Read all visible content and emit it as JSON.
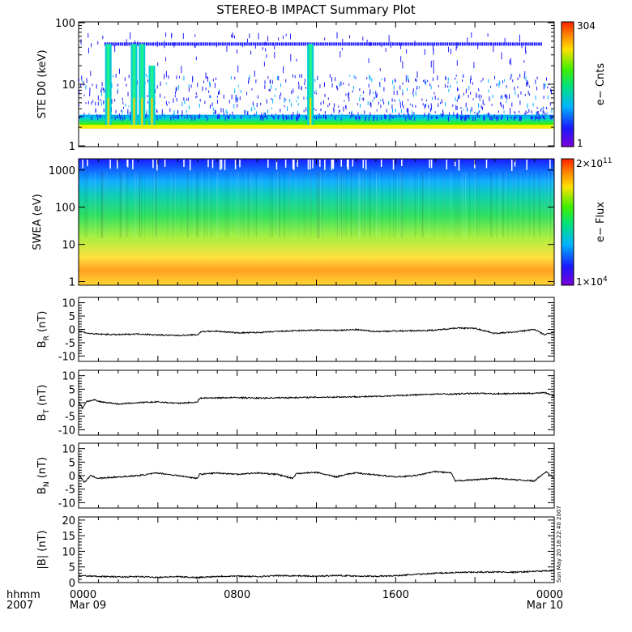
{
  "title": "STEREO-B IMPACT Summary Plot",
  "footer": {
    "hhmm": "hhmm",
    "year": "2007"
  },
  "stamp": "Sun May 20 18:22:40 2007",
  "x_axis": {
    "ticks": [
      {
        "t": 0,
        "label": "0000",
        "sub": "Mar 09"
      },
      {
        "t": 8,
        "label": "0800",
        "sub": ""
      },
      {
        "t": 16,
        "label": "1600",
        "sub": ""
      },
      {
        "t": 24,
        "label": "0000",
        "sub": "Mar 10"
      }
    ],
    "range": [
      0,
      24
    ]
  },
  "colors": {
    "scatter_blue": "#1a1aff",
    "line": "#000000"
  },
  "chart_data": [
    {
      "type": "heatmap",
      "ylabel": "STE D0 (keV)",
      "ylog": true,
      "ylim": [
        1,
        100
      ],
      "yticks": [
        "1",
        "10",
        "100"
      ],
      "colorbar": {
        "label": "e− Cnts",
        "max": "304",
        "min": "1"
      },
      "spikes": [
        {
          "t": 1.5,
          "top_keV": 45
        },
        {
          "t": 2.8,
          "top_keV": 45
        },
        {
          "t": 3.2,
          "top_keV": 45
        },
        {
          "t": 3.7,
          "top_keV": 20
        },
        {
          "t": 11.7,
          "top_keV": 45
        }
      ]
    },
    {
      "type": "heatmap",
      "ylabel": "SWEA (eV)",
      "ylog": true,
      "ylim": [
        0.8,
        2000
      ],
      "yticks": [
        "1",
        "10",
        "100",
        "1000"
      ],
      "colorbar": {
        "label": "e− Flux",
        "max": "2×10",
        "max_exp": "11",
        "min": "1×10",
        "min_exp": "4"
      }
    },
    {
      "type": "line",
      "ylabel_main": "B",
      "ylabel_sub": "R",
      "ylabel_unit": "(nT)",
      "ylim": [
        -12,
        12
      ],
      "yticks": [
        "-10",
        "-5",
        "0",
        "5",
        "10"
      ],
      "x": [
        0,
        0.5,
        1,
        2,
        3,
        4,
        5,
        6,
        6.2,
        7,
        8,
        9,
        10,
        11,
        12,
        13,
        14,
        15,
        16,
        17,
        18,
        19,
        20,
        21,
        22,
        23,
        23.5,
        24
      ],
      "y": [
        -0.5,
        -1.5,
        -1.8,
        -2.0,
        -1.7,
        -2.1,
        -2.3,
        -2.0,
        -0.8,
        -0.7,
        -1.3,
        -1.2,
        -0.8,
        -0.5,
        -0.3,
        -0.4,
        -0.1,
        -0.8,
        -0.6,
        -0.5,
        -0.3,
        0.5,
        0.4,
        -1.5,
        -1.0,
        0.0,
        -2.0,
        -1.0
      ]
    },
    {
      "type": "line",
      "ylabel_main": "B",
      "ylabel_sub": "T",
      "ylabel_unit": "(nT)",
      "ylim": [
        -12,
        12
      ],
      "yticks": [
        "-10",
        "-5",
        "0",
        "5",
        "10"
      ],
      "x": [
        0,
        0.2,
        0.4,
        0.8,
        1,
        2,
        3,
        4,
        5,
        6,
        6.1,
        7,
        8,
        9,
        10,
        11,
        12,
        13,
        14,
        15,
        16,
        17,
        18,
        19,
        20,
        21,
        22,
        23,
        23.5,
        24
      ],
      "y": [
        0.5,
        -2.0,
        0.5,
        1.0,
        0.5,
        -0.5,
        0.0,
        0.3,
        -0.2,
        0.2,
        1.7,
        1.8,
        1.9,
        1.7,
        1.8,
        1.9,
        2.0,
        2.1,
        2.2,
        2.3,
        2.6,
        2.9,
        3.2,
        3.2,
        3.5,
        3.3,
        3.4,
        3.5,
        3.8,
        2.5
      ]
    },
    {
      "type": "line",
      "ylabel_main": "B",
      "ylabel_sub": "N",
      "ylabel_unit": "(nT)",
      "ylim": [
        -12,
        12
      ],
      "yticks": [
        "-10",
        "-5",
        "0",
        "5",
        "10"
      ],
      "x": [
        0,
        0.3,
        0.6,
        1,
        2,
        3,
        4,
        5,
        6,
        6.1,
        7,
        8,
        9,
        10,
        10.8,
        11,
        12,
        13,
        13.5,
        14,
        15,
        16,
        17,
        18,
        18.8,
        19,
        20,
        21,
        22,
        23,
        23.6,
        24
      ],
      "y": [
        0.5,
        -2.5,
        0.0,
        -1.0,
        -0.5,
        0.0,
        1.0,
        0.0,
        -1.0,
        0.5,
        1.0,
        0.5,
        1.0,
        0.5,
        -1.0,
        0.8,
        1.2,
        -0.5,
        0.5,
        1.0,
        0.3,
        -0.5,
        0.0,
        1.5,
        1.0,
        -2.0,
        -1.5,
        -1.0,
        -1.5,
        -2.0,
        1.5,
        -1.0
      ]
    },
    {
      "type": "line",
      "ylabel_main": "|B|",
      "ylabel_sub": "",
      "ylabel_unit": "(nT)",
      "ylim": [
        0,
        21
      ],
      "yticks": [
        "0",
        "5",
        "10",
        "15",
        "20"
      ],
      "x": [
        0,
        1,
        2,
        3,
        4,
        5,
        6,
        7,
        8,
        9,
        10,
        11,
        12,
        13,
        14,
        15,
        16,
        17,
        18,
        19,
        20,
        21,
        22,
        23,
        24
      ],
      "y": [
        2.2,
        2.0,
        1.8,
        1.9,
        1.7,
        1.9,
        1.6,
        2.0,
        2.1,
        1.9,
        2.2,
        2.2,
        2.0,
        2.3,
        2.1,
        2.0,
        2.2,
        2.6,
        3.0,
        3.2,
        3.3,
        3.4,
        3.3,
        3.6,
        3.8
      ]
    }
  ]
}
